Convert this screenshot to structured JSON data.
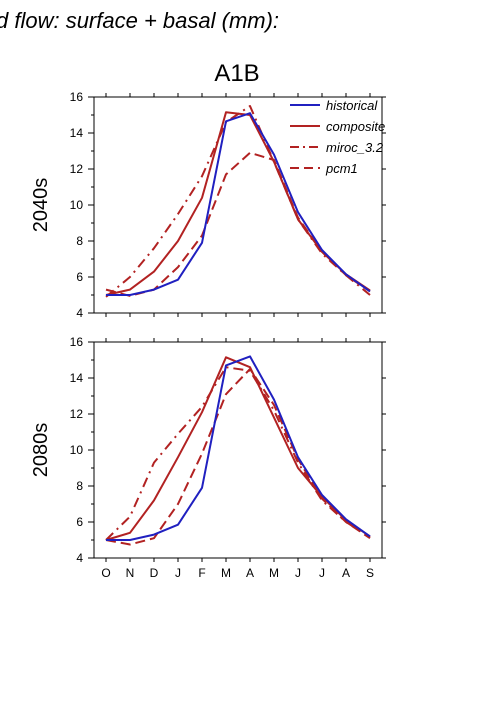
{
  "page": {
    "title": "d flow: surface + basal (mm):",
    "scenario": "A1B"
  },
  "colors": {
    "historical": "#2020c0",
    "composite": "#b22222",
    "miroc_3.2": "#b22222",
    "pcm1": "#b22222"
  },
  "chart_data": [
    {
      "type": "line",
      "panel_label": "2040s",
      "x": [
        "O",
        "N",
        "D",
        "J",
        "F",
        "M",
        "A",
        "M",
        "J",
        "J",
        "A",
        "S"
      ],
      "ylim": [
        4,
        16
      ],
      "yticks": [
        "4",
        "6",
        "8",
        "10",
        "12",
        "14",
        "16"
      ],
      "legend": {
        "position": "top-right",
        "items": [
          "historical",
          "composite",
          "miroc_3.2",
          "pcm1"
        ]
      },
      "series": [
        {
          "name": "historical",
          "style": "solid",
          "color": "#2020c0",
          "values": [
            5.0,
            5.0,
            5.3,
            5.85,
            7.9,
            14.65,
            15.1,
            12.8,
            9.6,
            7.5,
            6.15,
            5.2
          ]
        },
        {
          "name": "composite",
          "style": "solid",
          "color": "#b22222",
          "values": [
            5.0,
            5.3,
            6.3,
            8.0,
            10.4,
            15.15,
            15.0,
            12.4,
            9.2,
            7.4,
            6.15,
            5.25
          ]
        },
        {
          "name": "miroc_3.2",
          "style": "dashdot",
          "color": "#b22222",
          "values": [
            4.9,
            6.0,
            7.6,
            9.5,
            11.6,
            14.6,
            15.5,
            12.4,
            9.2,
            7.3,
            6.1,
            5.0
          ]
        },
        {
          "name": "pcm1",
          "style": "dashed",
          "color": "#b22222",
          "values": [
            5.3,
            4.95,
            5.3,
            6.55,
            8.3,
            11.7,
            12.9,
            12.5,
            9.3,
            7.4,
            6.1,
            5.2
          ]
        }
      ]
    },
    {
      "type": "line",
      "panel_label": "2080s",
      "x": [
        "O",
        "N",
        "D",
        "J",
        "F",
        "M",
        "A",
        "M",
        "J",
        "J",
        "A",
        "S"
      ],
      "ylim": [
        4,
        16
      ],
      "yticks": [
        "4",
        "6",
        "8",
        "10",
        "12",
        "14",
        "16"
      ],
      "series": [
        {
          "name": "historical",
          "style": "solid",
          "color": "#2020c0",
          "values": [
            5.0,
            5.0,
            5.3,
            5.85,
            7.9,
            14.7,
            15.2,
            12.8,
            9.6,
            7.5,
            6.15,
            5.2
          ]
        },
        {
          "name": "composite",
          "style": "solid",
          "color": "#b22222",
          "values": [
            5.0,
            5.4,
            7.2,
            9.6,
            12.1,
            15.15,
            14.6,
            11.8,
            9.0,
            7.4,
            6.1,
            5.2
          ]
        },
        {
          "name": "miroc_3.2",
          "style": "dashdot",
          "color": "#b22222",
          "values": [
            5.0,
            6.3,
            9.3,
            10.9,
            12.4,
            14.6,
            14.4,
            12.2,
            9.3,
            7.2,
            6.0,
            5.15
          ]
        },
        {
          "name": "pcm1",
          "style": "dashed",
          "color": "#b22222",
          "values": [
            5.0,
            4.75,
            5.1,
            7.0,
            9.8,
            13.1,
            14.5,
            12.5,
            9.5,
            7.3,
            6.0,
            5.1
          ]
        }
      ]
    }
  ]
}
